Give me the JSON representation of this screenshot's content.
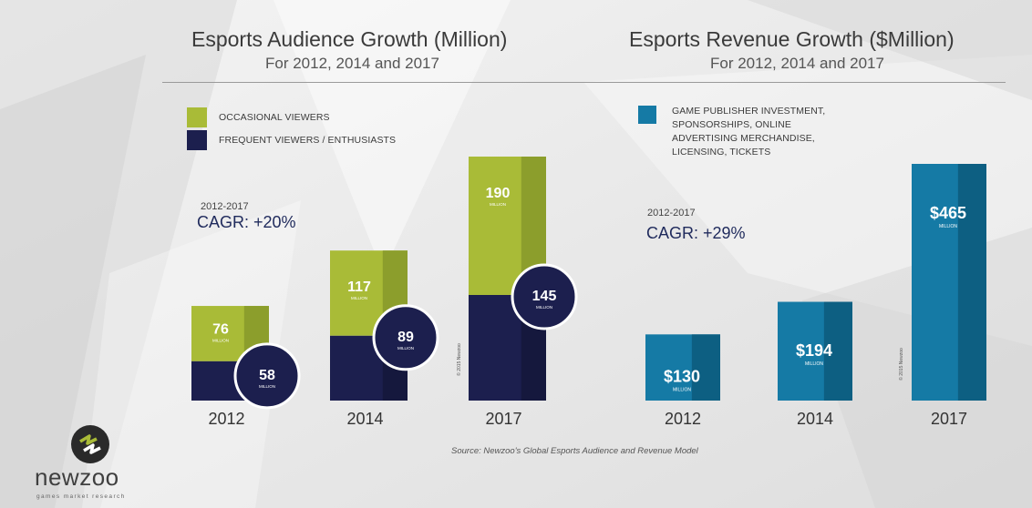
{
  "colors": {
    "occasional": "#a9bb37",
    "occasional_shade": "#8c9e2c",
    "frequent": "#1c1f4e",
    "frequent_shade": "#15183d",
    "revenue": "#157aa5",
    "revenue_shade": "#0d5f82",
    "circle_stroke": "#ffffff"
  },
  "header_divider": true,
  "audience": {
    "title": "Esports Audience Growth (Million)",
    "subtitle": "For 2012, 2014 and 2017",
    "legend": [
      "OCCASIONAL VIEWERS",
      "FREQUENT VIEWERS / ENTHUSIASTS"
    ],
    "cagr_period": "2012-2017",
    "cagr_value": "CAGR: +20%"
  },
  "revenue": {
    "title": "Esports Revenue Growth ($Million)",
    "subtitle": "For 2012, 2014 and 2017",
    "legend": [
      "GAME PUBLISHER INVESTMENT,",
      "SPONSORSHIPS, ONLINE",
      "ADVERTISING MERCHANDISE,",
      "LICENSING, TICKETS"
    ],
    "cagr_period": "2012-2017",
    "cagr_value": "CAGR: +29%"
  },
  "chart_data": [
    {
      "type": "bar",
      "stacked": true,
      "title": "Esports Audience Growth (Million)",
      "subtitle": "For 2012, 2014 and 2017",
      "categories": [
        "2012",
        "2014",
        "2017"
      ],
      "unit_label": "MILLION",
      "series": [
        {
          "name": "FREQUENT VIEWERS / ENTHUSIASTS",
          "values": [
            58,
            89,
            145
          ],
          "labels": [
            "58",
            "89",
            "145"
          ]
        },
        {
          "name": "OCCASIONAL VIEWERS",
          "values": [
            76,
            117,
            190
          ],
          "labels": [
            "76",
            "117",
            "190"
          ]
        }
      ],
      "ylim": [
        0,
        340
      ]
    },
    {
      "type": "bar",
      "title": "Esports Revenue Growth ($Million)",
      "subtitle": "For 2012, 2014 and 2017",
      "categories": [
        "2012",
        "2014",
        "2017"
      ],
      "unit_label": "MILLION",
      "series": [
        {
          "name": "GAME PUBLISHER INVESTMENT, SPONSORSHIPS, ONLINE ADVERTISING MERCHANDISE, LICENSING, TICKETS",
          "values": [
            130,
            194,
            465
          ],
          "labels": [
            "$130",
            "$194",
            "$465"
          ]
        }
      ],
      "ylim": [
        0,
        465
      ]
    }
  ],
  "copyright": "© 2015 Newzoo",
  "source": "Source: Newzoo's Global Esports Audience and Revenue Model",
  "logo": {
    "word": "newzoo",
    "tagline": "games market research"
  }
}
